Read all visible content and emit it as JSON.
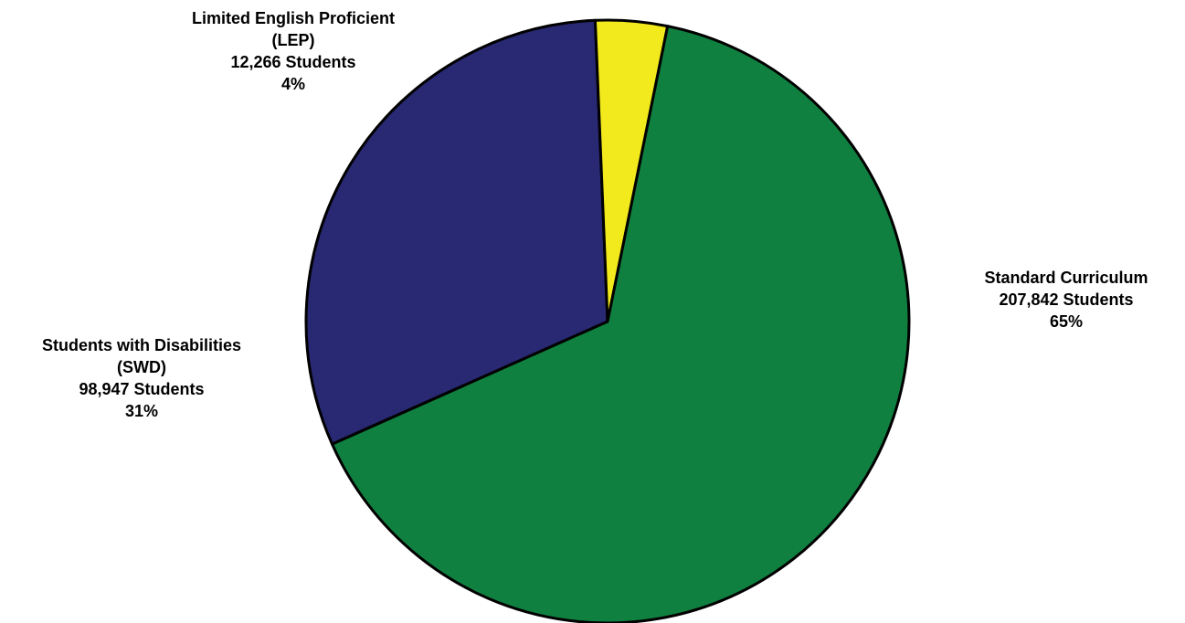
{
  "chart_data": {
    "type": "pie",
    "title": "",
    "slices": [
      {
        "key": "std",
        "name": "Standard Curriculum",
        "students": 207842,
        "students_label": "207,842 Students",
        "percent": 65,
        "percent_label": "65%",
        "color": "#108040",
        "label_lines": [
          "Standard Curriculum"
        ]
      },
      {
        "key": "swd",
        "name": "Students with Disabilities (SWD)",
        "students": 98947,
        "students_label": "98,947 Students",
        "percent": 31,
        "percent_label": "31%",
        "color": "#282873",
        "label_lines": [
          "Students with Disabilities",
          "(SWD)"
        ]
      },
      {
        "key": "lep",
        "name": "Limited English Proficient (LEP)",
        "students": 12266,
        "students_label": "12,266 Students",
        "percent": 4,
        "percent_label": "4%",
        "color": "#f2ea1c",
        "label_lines": [
          "Limited English Proficient",
          "(LEP)"
        ]
      }
    ],
    "legend": "none",
    "outline_color": "#000000"
  }
}
